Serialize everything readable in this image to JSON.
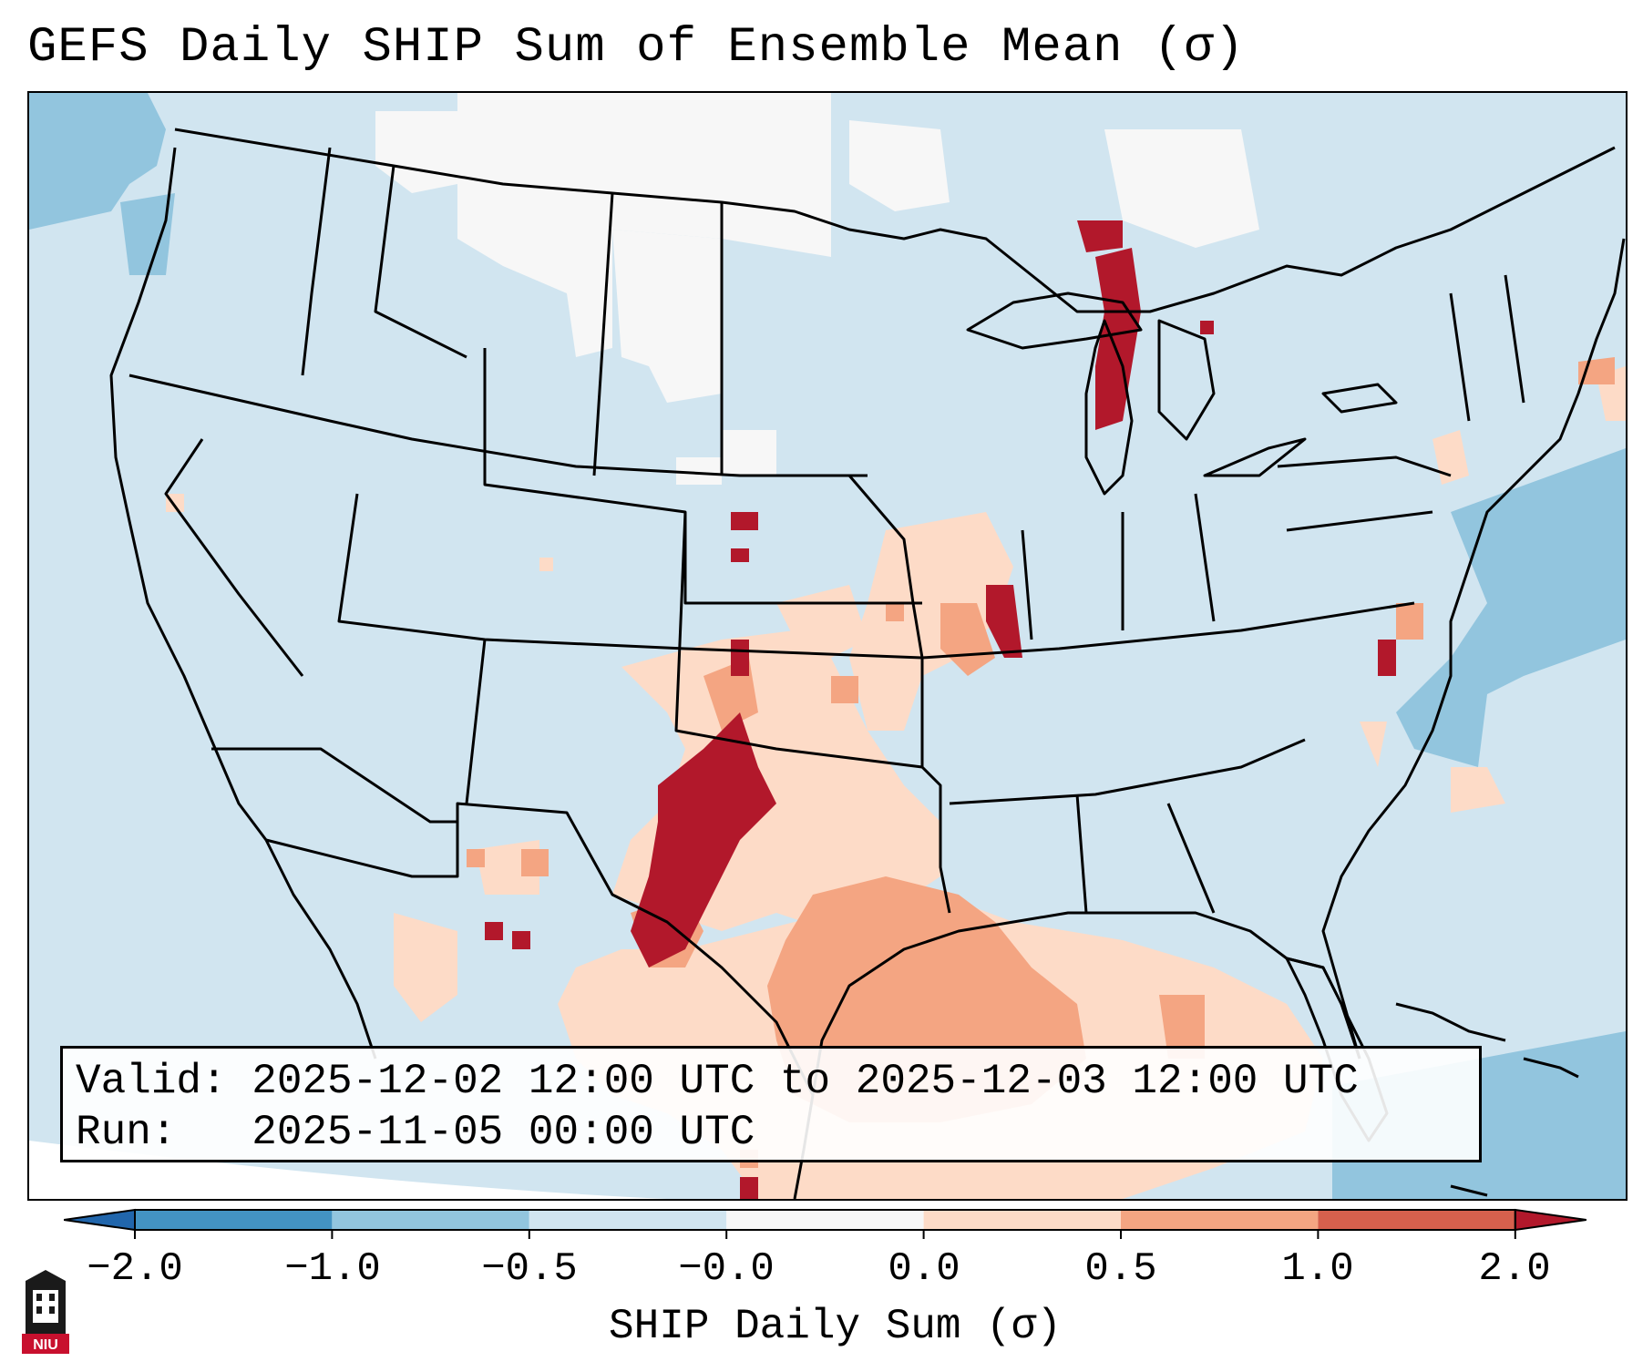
{
  "title": "GEFS Daily SHIP Sum of Ensemble Mean (σ)",
  "info": {
    "valid_line": "Valid: 2025-12-02 12:00 UTC to 2025-12-03 12:00 UTC",
    "run_line": "Run:   2025-11-05 00:00 UTC"
  },
  "colorbar": {
    "label": "SHIP Daily Sum (σ)",
    "ticks": [
      "−2.0",
      "−1.0",
      "−0.5",
      "−0.0",
      "0.0",
      "0.5",
      "1.0",
      "2.0"
    ],
    "colors": [
      "#4393c3",
      "#92c5de",
      "#d1e5f0",
      "#f7f7f7",
      "#fddbc7",
      "#f4a582",
      "#d6604d"
    ],
    "extend_min_color": "#2166ac",
    "extend_max_color": "#b2182b"
  },
  "map": {
    "region": "Continental United States",
    "background_color": "#d1e5f0",
    "high_categories": [
      "Lake Michigan lake-effect band",
      "Texas Panhandle / eastern New Mexico",
      "southwest Kansas",
      "Missouri"
    ]
  },
  "logo": {
    "text": "NIU",
    "icon": "niu-logo-icon"
  }
}
